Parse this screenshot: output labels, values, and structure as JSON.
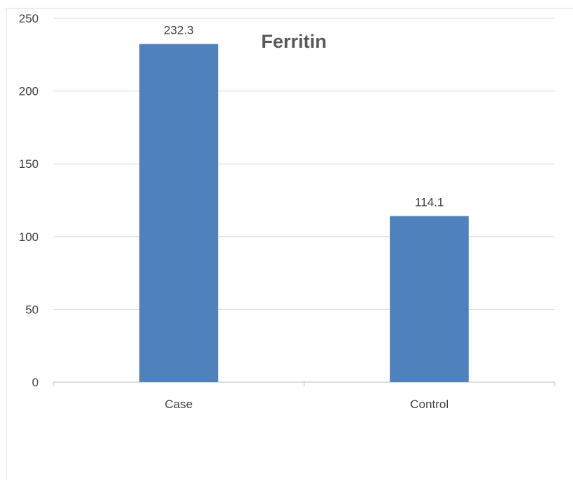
{
  "chart_data": {
    "type": "bar",
    "title": "Ferritin",
    "categories": [
      "Case",
      "Control"
    ],
    "values": [
      232.3,
      114.1
    ],
    "data_labels": [
      "232.3",
      "114.1"
    ],
    "ylim": [
      0,
      250
    ],
    "yticks": [
      0,
      50,
      100,
      150,
      200,
      250
    ],
    "ytick_labels": [
      "0",
      "50",
      "100",
      "150",
      "200",
      "250"
    ],
    "xlabel": "",
    "ylabel": "",
    "grid": true,
    "legend": "none",
    "bar_color": "#4f81bd"
  }
}
